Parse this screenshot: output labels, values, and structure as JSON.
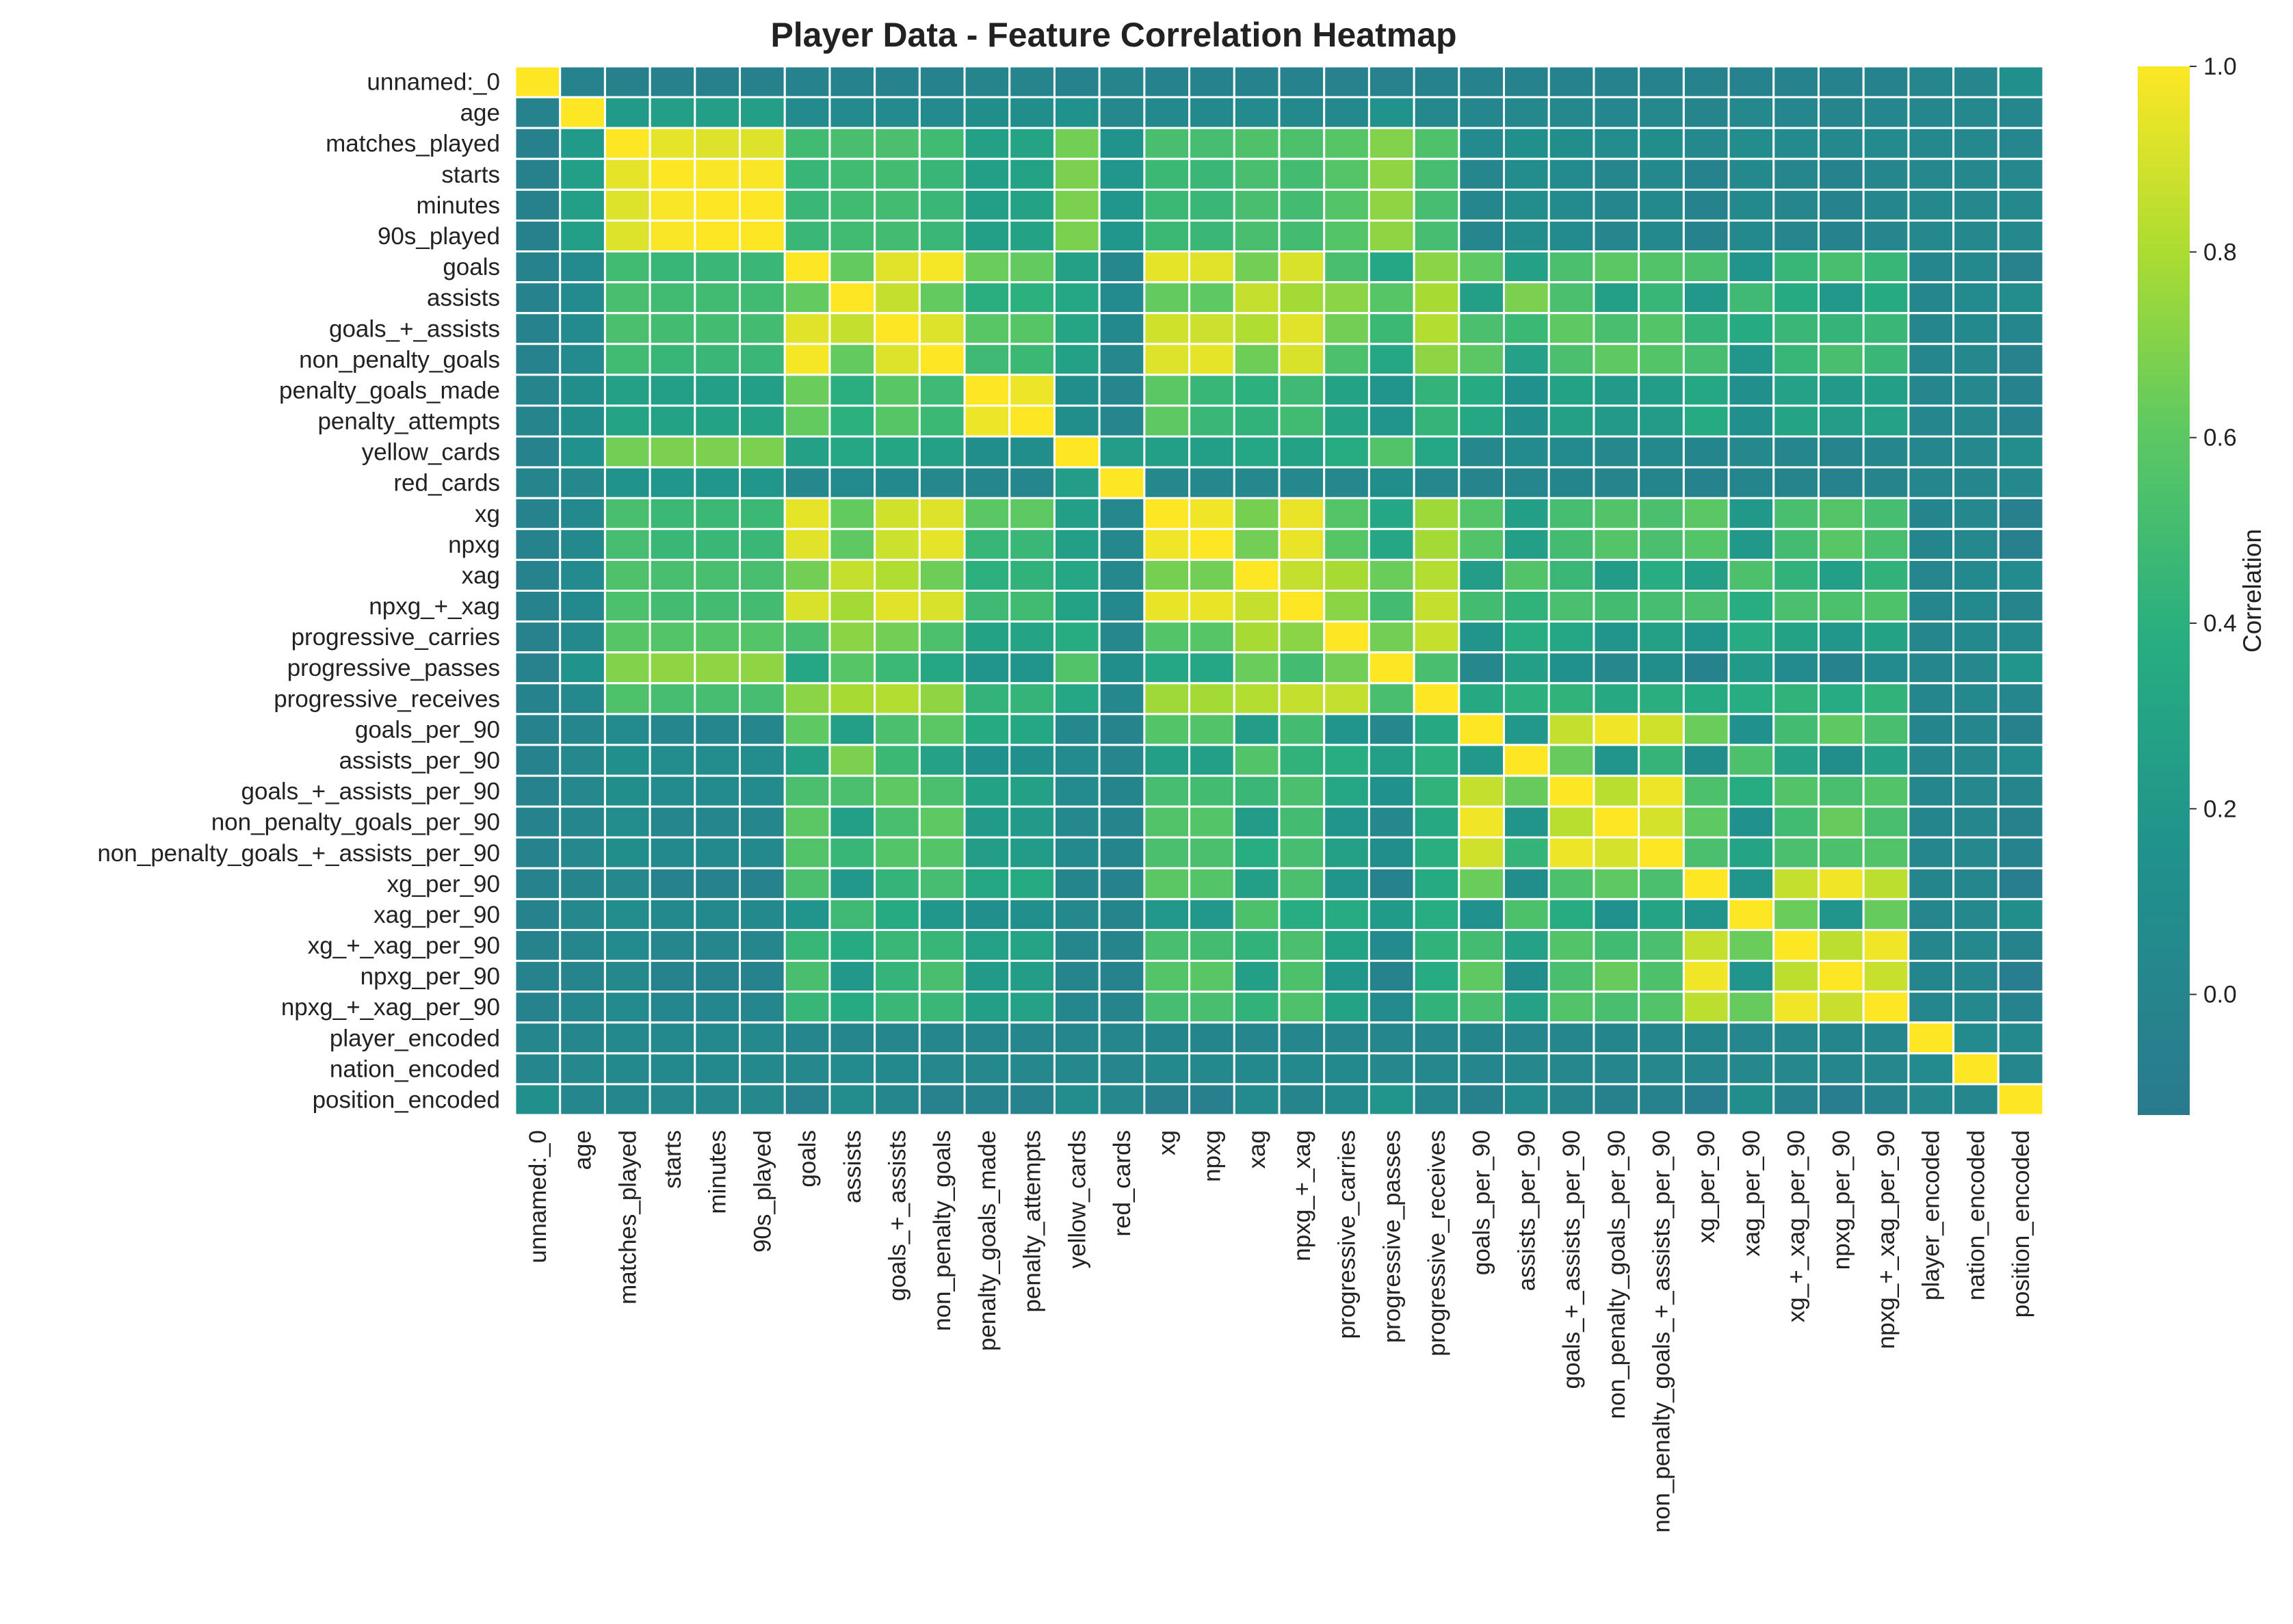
{
  "chart_data": {
    "type": "heatmap",
    "title": "Player Data - Feature Correlation Heatmap",
    "xlabel": "",
    "ylabel": "",
    "colorbar": {
      "label": "Correlation",
      "range": [
        -0.13,
        1.0
      ],
      "ticks": [
        0.0,
        0.2,
        0.4,
        0.6,
        0.8,
        1.0
      ],
      "tick_labels": [
        "0.0",
        "0.2",
        "0.4",
        "0.6",
        "0.8",
        "1.0"
      ],
      "colormap": "teal-green-yellow"
    },
    "grid": true,
    "cell_border_color": "#ffffff",
    "labels": [
      "unnamed:_0",
      "age",
      "matches_played",
      "starts",
      "minutes",
      "90s_played",
      "goals",
      "assists",
      "goals_+_assists",
      "non_penalty_goals",
      "penalty_goals_made",
      "penalty_attempts",
      "yellow_cards",
      "red_cards",
      "xg",
      "npxg",
      "xag",
      "npxg_+_xag",
      "progressive_carries",
      "progressive_passes",
      "progressive_receives",
      "goals_per_90",
      "assists_per_90",
      "goals_+_assists_per_90",
      "non_penalty_goals_per_90",
      "non_penalty_goals_+_assists_per_90",
      "xg_per_90",
      "xag_per_90",
      "xg_+_xag_per_90",
      "npxg_per_90",
      "npxg_+_xag_per_90",
      "player_encoded",
      "nation_encoded",
      "position_encoded"
    ],
    "matrix": [
      [
        1.0,
        -0.02,
        -0.05,
        -0.05,
        -0.05,
        -0.05,
        -0.03,
        -0.03,
        -0.03,
        -0.03,
        -0.01,
        -0.01,
        -0.03,
        -0.01,
        -0.03,
        -0.03,
        -0.03,
        -0.03,
        -0.04,
        -0.04,
        -0.03,
        -0.02,
        -0.02,
        -0.02,
        -0.02,
        -0.02,
        -0.02,
        -0.02,
        -0.02,
        -0.02,
        -0.02,
        0.02,
        0.01,
        0.12
      ],
      [
        -0.02,
        1.0,
        0.22,
        0.25,
        0.25,
        0.25,
        0.06,
        0.06,
        0.06,
        0.06,
        0.1,
        0.1,
        0.14,
        0.03,
        0.05,
        0.05,
        0.06,
        0.05,
        0.05,
        0.16,
        0.04,
        0.02,
        0.03,
        0.03,
        0.02,
        0.03,
        -0.01,
        0.04,
        0.01,
        -0.01,
        0.01,
        0.01,
        0.03,
        0.02
      ],
      [
        -0.05,
        0.22,
        1.0,
        0.94,
        0.92,
        0.92,
        0.49,
        0.52,
        0.53,
        0.49,
        0.27,
        0.3,
        0.66,
        0.16,
        0.52,
        0.51,
        0.55,
        0.54,
        0.58,
        0.7,
        0.55,
        0.07,
        0.12,
        0.11,
        0.08,
        0.1,
        0.03,
        0.08,
        0.06,
        0.03,
        0.06,
        0.03,
        0.03,
        0.02
      ],
      [
        -0.05,
        0.25,
        0.94,
        1.0,
        0.99,
        0.99,
        0.45,
        0.49,
        0.5,
        0.45,
        0.26,
        0.29,
        0.68,
        0.19,
        0.47,
        0.46,
        0.52,
        0.5,
        0.57,
        0.73,
        0.51,
        0.02,
        0.08,
        0.06,
        0.02,
        0.05,
        -0.02,
        0.05,
        0.01,
        -0.03,
        0.01,
        0.03,
        0.04,
        0.03
      ],
      [
        -0.05,
        0.25,
        0.92,
        0.99,
        1.0,
        1.0,
        0.46,
        0.49,
        0.5,
        0.46,
        0.26,
        0.29,
        0.68,
        0.19,
        0.47,
        0.46,
        0.52,
        0.5,
        0.57,
        0.73,
        0.51,
        0.02,
        0.08,
        0.06,
        0.02,
        0.05,
        -0.02,
        0.05,
        0.01,
        -0.03,
        0.01,
        0.03,
        0.04,
        0.03
      ],
      [
        -0.05,
        0.25,
        0.92,
        0.99,
        1.0,
        1.0,
        0.46,
        0.49,
        0.5,
        0.46,
        0.26,
        0.29,
        0.68,
        0.19,
        0.47,
        0.46,
        0.52,
        0.5,
        0.57,
        0.73,
        0.51,
        0.02,
        0.08,
        0.06,
        0.02,
        0.05,
        -0.02,
        0.05,
        0.01,
        -0.03,
        0.01,
        0.03,
        0.04,
        0.03
      ],
      [
        -0.03,
        0.06,
        0.49,
        0.45,
        0.46,
        0.46,
        1.0,
        0.62,
        0.93,
        0.98,
        0.64,
        0.62,
        0.27,
        0.04,
        0.94,
        0.93,
        0.66,
        0.91,
        0.52,
        0.32,
        0.72,
        0.61,
        0.27,
        0.53,
        0.6,
        0.56,
        0.53,
        0.18,
        0.45,
        0.52,
        0.45,
        0.01,
        0.04,
        -0.04
      ],
      [
        -0.03,
        0.06,
        0.52,
        0.49,
        0.49,
        0.49,
        0.62,
        1.0,
        0.86,
        0.62,
        0.39,
        0.4,
        0.32,
        0.06,
        0.62,
        0.61,
        0.86,
        0.78,
        0.72,
        0.58,
        0.79,
        0.26,
        0.68,
        0.53,
        0.25,
        0.45,
        0.2,
        0.48,
        0.35,
        0.2,
        0.35,
        0.01,
        0.06,
        0.08
      ],
      [
        -0.03,
        0.06,
        0.53,
        0.5,
        0.5,
        0.5,
        0.93,
        0.86,
        1.0,
        0.92,
        0.59,
        0.58,
        0.31,
        0.05,
        0.89,
        0.88,
        0.81,
        0.93,
        0.66,
        0.47,
        0.82,
        0.53,
        0.47,
        0.61,
        0.52,
        0.57,
        0.44,
        0.35,
        0.46,
        0.44,
        0.46,
        0.01,
        0.05,
        0.02
      ],
      [
        -0.03,
        0.06,
        0.49,
        0.45,
        0.46,
        0.46,
        0.98,
        0.62,
        0.92,
        1.0,
        0.48,
        0.47,
        0.27,
        0.04,
        0.92,
        0.94,
        0.65,
        0.91,
        0.54,
        0.33,
        0.73,
        0.6,
        0.28,
        0.53,
        0.61,
        0.57,
        0.51,
        0.19,
        0.45,
        0.52,
        0.46,
        0.01,
        0.04,
        -0.04
      ],
      [
        -0.01,
        0.1,
        0.27,
        0.26,
        0.26,
        0.26,
        0.64,
        0.39,
        0.59,
        0.48,
        1.0,
        0.96,
        0.1,
        0.01,
        0.6,
        0.45,
        0.4,
        0.48,
        0.29,
        0.17,
        0.43,
        0.35,
        0.14,
        0.29,
        0.22,
        0.24,
        0.33,
        0.12,
        0.28,
        0.22,
        0.26,
        0.01,
        0.03,
        -0.03
      ],
      [
        -0.01,
        0.1,
        0.3,
        0.29,
        0.29,
        0.29,
        0.62,
        0.4,
        0.58,
        0.47,
        0.96,
        1.0,
        0.11,
        0.01,
        0.61,
        0.46,
        0.42,
        0.49,
        0.3,
        0.18,
        0.44,
        0.33,
        0.13,
        0.27,
        0.21,
        0.23,
        0.35,
        0.13,
        0.3,
        0.24,
        0.28,
        0.01,
        0.03,
        -0.03
      ],
      [
        -0.03,
        0.14,
        0.66,
        0.68,
        0.68,
        0.68,
        0.27,
        0.32,
        0.31,
        0.27,
        0.1,
        0.11,
        1.0,
        0.24,
        0.25,
        0.25,
        0.32,
        0.29,
        0.37,
        0.56,
        0.32,
        0.04,
        0.07,
        0.06,
        0.03,
        0.05,
        0.0,
        0.04,
        0.02,
        -0.01,
        0.02,
        0.02,
        0.03,
        0.08
      ],
      [
        -0.01,
        0.03,
        0.16,
        0.19,
        0.19,
        0.19,
        0.04,
        0.06,
        0.05,
        0.04,
        0.01,
        0.01,
        0.24,
        1.0,
        0.03,
        0.03,
        0.04,
        0.04,
        0.04,
        0.11,
        0.04,
        -0.01,
        0.01,
        0.0,
        -0.01,
        0.0,
        -0.02,
        0.0,
        -0.01,
        -0.02,
        -0.01,
        0.01,
        0.01,
        0.04
      ],
      [
        -0.03,
        0.05,
        0.52,
        0.47,
        0.47,
        0.47,
        0.94,
        0.62,
        0.89,
        0.92,
        0.6,
        0.61,
        0.25,
        0.03,
        1.0,
        0.97,
        0.67,
        0.95,
        0.57,
        0.32,
        0.77,
        0.57,
        0.26,
        0.51,
        0.56,
        0.53,
        0.6,
        0.2,
        0.52,
        0.57,
        0.51,
        0.0,
        0.04,
        -0.07
      ],
      [
        -0.03,
        0.05,
        0.51,
        0.46,
        0.46,
        0.46,
        0.93,
        0.61,
        0.88,
        0.94,
        0.45,
        0.46,
        0.25,
        0.03,
        0.97,
        1.0,
        0.66,
        0.95,
        0.58,
        0.32,
        0.78,
        0.56,
        0.26,
        0.5,
        0.57,
        0.53,
        0.57,
        0.2,
        0.5,
        0.59,
        0.52,
        0.0,
        0.04,
        -0.07
      ],
      [
        -0.03,
        0.06,
        0.55,
        0.52,
        0.52,
        0.52,
        0.66,
        0.86,
        0.81,
        0.65,
        0.4,
        0.42,
        0.32,
        0.04,
        0.67,
        0.66,
        1.0,
        0.86,
        0.79,
        0.64,
        0.82,
        0.24,
        0.56,
        0.46,
        0.23,
        0.38,
        0.25,
        0.54,
        0.42,
        0.25,
        0.42,
        0.01,
        0.05,
        0.06
      ],
      [
        -0.03,
        0.05,
        0.54,
        0.5,
        0.5,
        0.5,
        0.91,
        0.78,
        0.93,
        0.91,
        0.48,
        0.49,
        0.29,
        0.04,
        0.95,
        0.95,
        0.86,
        1.0,
        0.72,
        0.5,
        0.86,
        0.5,
        0.42,
        0.53,
        0.5,
        0.51,
        0.53,
        0.38,
        0.53,
        0.54,
        0.55,
        0.01,
        0.05,
        -0.01
      ],
      [
        -0.04,
        0.05,
        0.58,
        0.57,
        0.57,
        0.57,
        0.52,
        0.72,
        0.66,
        0.54,
        0.29,
        0.3,
        0.37,
        0.04,
        0.57,
        0.58,
        0.79,
        0.72,
        1.0,
        0.66,
        0.86,
        0.18,
        0.38,
        0.32,
        0.18,
        0.27,
        0.18,
        0.36,
        0.29,
        0.19,
        0.29,
        0.01,
        0.05,
        0.05
      ],
      [
        -0.04,
        0.16,
        0.7,
        0.73,
        0.73,
        0.73,
        0.32,
        0.58,
        0.47,
        0.33,
        0.17,
        0.18,
        0.56,
        0.11,
        0.32,
        0.32,
        0.64,
        0.5,
        0.66,
        1.0,
        0.52,
        0.04,
        0.25,
        0.14,
        0.04,
        0.1,
        -0.03,
        0.22,
        0.07,
        -0.03,
        0.07,
        0.01,
        0.04,
        0.18
      ],
      [
        -0.03,
        0.04,
        0.55,
        0.51,
        0.51,
        0.51,
        0.72,
        0.79,
        0.82,
        0.73,
        0.43,
        0.44,
        0.32,
        0.04,
        0.77,
        0.78,
        0.82,
        0.86,
        0.86,
        0.52,
        1.0,
        0.34,
        0.4,
        0.42,
        0.34,
        0.39,
        0.35,
        0.38,
        0.42,
        0.36,
        0.42,
        0.01,
        0.04,
        0.02
      ],
      [
        -0.02,
        0.02,
        0.07,
        0.02,
        0.02,
        0.02,
        0.61,
        0.26,
        0.53,
        0.6,
        0.35,
        0.33,
        0.04,
        -0.01,
        0.57,
        0.56,
        0.24,
        0.5,
        0.18,
        0.04,
        0.34,
        1.0,
        0.2,
        0.86,
        0.97,
        0.89,
        0.64,
        0.14,
        0.5,
        0.61,
        0.52,
        0.0,
        0.02,
        -0.05
      ],
      [
        -0.02,
        0.03,
        0.12,
        0.08,
        0.08,
        0.08,
        0.26,
        0.68,
        0.47,
        0.28,
        0.14,
        0.13,
        0.07,
        0.01,
        0.26,
        0.26,
        0.56,
        0.42,
        0.38,
        0.25,
        0.4,
        0.2,
        1.0,
        0.63,
        0.17,
        0.44,
        0.1,
        0.54,
        0.28,
        0.1,
        0.28,
        0.01,
        0.04,
        0.07
      ],
      [
        -0.02,
        0.03,
        0.11,
        0.06,
        0.06,
        0.06,
        0.53,
        0.53,
        0.61,
        0.53,
        0.29,
        0.27,
        0.06,
        0.0,
        0.51,
        0.5,
        0.46,
        0.53,
        0.32,
        0.14,
        0.42,
        0.86,
        0.63,
        1.0,
        0.83,
        0.96,
        0.54,
        0.37,
        0.56,
        0.52,
        0.56,
        0.01,
        0.03,
        -0.01
      ],
      [
        -0.02,
        0.02,
        0.08,
        0.02,
        0.02,
        0.02,
        0.6,
        0.25,
        0.52,
        0.61,
        0.22,
        0.21,
        0.03,
        -0.01,
        0.56,
        0.57,
        0.23,
        0.5,
        0.18,
        0.04,
        0.34,
        0.97,
        0.17,
        0.83,
        1.0,
        0.9,
        0.61,
        0.14,
        0.49,
        0.63,
        0.52,
        0.0,
        0.02,
        -0.05
      ],
      [
        -0.02,
        0.03,
        0.1,
        0.05,
        0.05,
        0.05,
        0.56,
        0.45,
        0.57,
        0.57,
        0.24,
        0.23,
        0.05,
        0.0,
        0.53,
        0.53,
        0.38,
        0.51,
        0.27,
        0.1,
        0.39,
        0.89,
        0.44,
        0.96,
        0.9,
        1.0,
        0.53,
        0.3,
        0.53,
        0.54,
        0.56,
        0.01,
        0.03,
        -0.02
      ],
      [
        -0.02,
        -0.01,
        0.03,
        -0.02,
        -0.02,
        -0.02,
        0.53,
        0.2,
        0.44,
        0.51,
        0.33,
        0.35,
        0.0,
        -0.02,
        0.6,
        0.57,
        0.25,
        0.53,
        0.18,
        -0.03,
        0.35,
        0.64,
        0.1,
        0.54,
        0.61,
        0.53,
        1.0,
        0.18,
        0.86,
        0.97,
        0.84,
        0.0,
        0.02,
        -0.08
      ],
      [
        -0.02,
        0.04,
        0.08,
        0.05,
        0.05,
        0.05,
        0.18,
        0.48,
        0.35,
        0.19,
        0.12,
        0.13,
        0.04,
        0.0,
        0.2,
        0.2,
        0.54,
        0.38,
        0.36,
        0.22,
        0.38,
        0.14,
        0.54,
        0.37,
        0.14,
        0.3,
        0.18,
        1.0,
        0.64,
        0.17,
        0.63,
        0.01,
        0.04,
        0.1
      ],
      [
        -0.02,
        0.01,
        0.06,
        0.01,
        0.01,
        0.01,
        0.45,
        0.35,
        0.46,
        0.45,
        0.28,
        0.3,
        0.02,
        -0.01,
        0.52,
        0.5,
        0.42,
        0.53,
        0.29,
        0.07,
        0.42,
        0.5,
        0.28,
        0.56,
        0.49,
        0.53,
        0.86,
        0.64,
        1.0,
        0.84,
        0.97,
        0.01,
        0.03,
        -0.02
      ],
      [
        -0.02,
        -0.01,
        0.03,
        -0.03,
        -0.03,
        -0.03,
        0.52,
        0.2,
        0.44,
        0.52,
        0.22,
        0.24,
        -0.01,
        -0.02,
        0.57,
        0.59,
        0.25,
        0.54,
        0.19,
        -0.03,
        0.36,
        0.61,
        0.1,
        0.52,
        0.63,
        0.54,
        0.97,
        0.17,
        0.84,
        1.0,
        0.87,
        0.0,
        0.02,
        -0.08
      ],
      [
        -0.02,
        0.01,
        0.06,
        0.01,
        0.01,
        0.01,
        0.45,
        0.35,
        0.46,
        0.46,
        0.26,
        0.28,
        0.02,
        -0.01,
        0.51,
        0.52,
        0.42,
        0.55,
        0.29,
        0.07,
        0.42,
        0.52,
        0.28,
        0.56,
        0.52,
        0.56,
        0.84,
        0.63,
        0.97,
        0.87,
        1.0,
        0.01,
        0.03,
        -0.02
      ],
      [
        0.02,
        0.01,
        0.03,
        0.03,
        0.03,
        0.03,
        0.01,
        0.01,
        0.01,
        0.01,
        0.01,
        0.01,
        0.02,
        0.01,
        0.0,
        0.0,
        0.01,
        0.01,
        0.01,
        0.01,
        0.01,
        0.0,
        0.01,
        0.01,
        0.0,
        0.01,
        0.0,
        0.01,
        0.01,
        0.0,
        0.01,
        1.0,
        0.07,
        0.04
      ],
      [
        0.01,
        0.03,
        0.03,
        0.04,
        0.04,
        0.04,
        0.04,
        0.06,
        0.05,
        0.04,
        0.03,
        0.03,
        0.03,
        0.01,
        0.04,
        0.04,
        0.05,
        0.05,
        0.05,
        0.04,
        0.04,
        0.02,
        0.04,
        0.03,
        0.02,
        0.03,
        0.02,
        0.04,
        0.03,
        0.02,
        0.03,
        0.07,
        1.0,
        0.02
      ],
      [
        0.12,
        0.02,
        0.02,
        0.03,
        0.03,
        0.03,
        -0.04,
        0.08,
        0.02,
        -0.04,
        -0.03,
        -0.03,
        0.08,
        0.04,
        -0.07,
        -0.07,
        0.06,
        -0.01,
        0.05,
        0.18,
        0.02,
        -0.05,
        0.07,
        -0.01,
        -0.05,
        -0.02,
        -0.08,
        0.1,
        -0.02,
        -0.08,
        -0.02,
        0.04,
        0.02,
        1.0
      ]
    ]
  }
}
